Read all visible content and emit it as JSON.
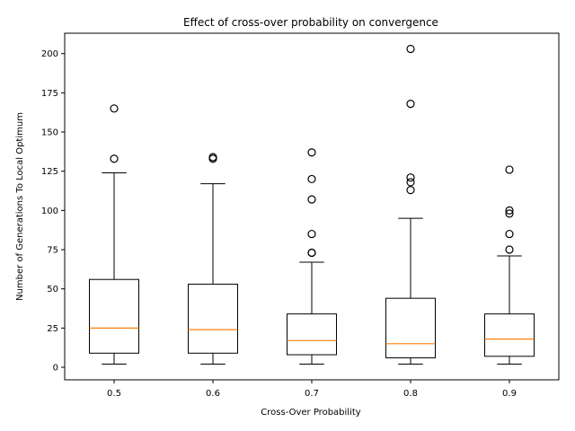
{
  "chart_data": {
    "type": "box",
    "title": "Effect of cross-over probability on convergence",
    "xlabel": "Cross-Over Probability",
    "ylabel": "Number of Generations To Local Optimum",
    "categories": [
      "0.5",
      "0.6",
      "0.7",
      "0.8",
      "0.9"
    ],
    "yticks": [
      "0",
      "25",
      "50",
      "75",
      "100",
      "125",
      "150",
      "175",
      "200"
    ],
    "ylim": [
      -8,
      213
    ],
    "grid": false,
    "boxes": [
      {
        "category": "0.5",
        "whisker_low": 2,
        "q1": 9,
        "median": 25,
        "q3": 56,
        "whisker_high": 124,
        "outliers": [
          133,
          165
        ]
      },
      {
        "category": "0.6",
        "whisker_low": 2,
        "q1": 9,
        "median": 24,
        "q3": 53,
        "whisker_high": 117,
        "outliers": [
          133,
          134
        ]
      },
      {
        "category": "0.7",
        "whisker_low": 2,
        "q1": 8,
        "median": 17,
        "q3": 34,
        "whisker_high": 67,
        "outliers": [
          73,
          73,
          85,
          107,
          120,
          137
        ]
      },
      {
        "category": "0.8",
        "whisker_low": 2,
        "q1": 6,
        "median": 15,
        "q3": 44,
        "whisker_high": 95,
        "outliers": [
          113,
          118,
          121,
          168,
          203
        ]
      },
      {
        "category": "0.9",
        "whisker_low": 2,
        "q1": 7,
        "median": 18,
        "q3": 34,
        "whisker_high": 71,
        "outliers": [
          75,
          85,
          98,
          100,
          126
        ]
      }
    ],
    "colors": {
      "box": "#000000",
      "median": "#ff7f0e",
      "outlier": "#000000"
    }
  }
}
